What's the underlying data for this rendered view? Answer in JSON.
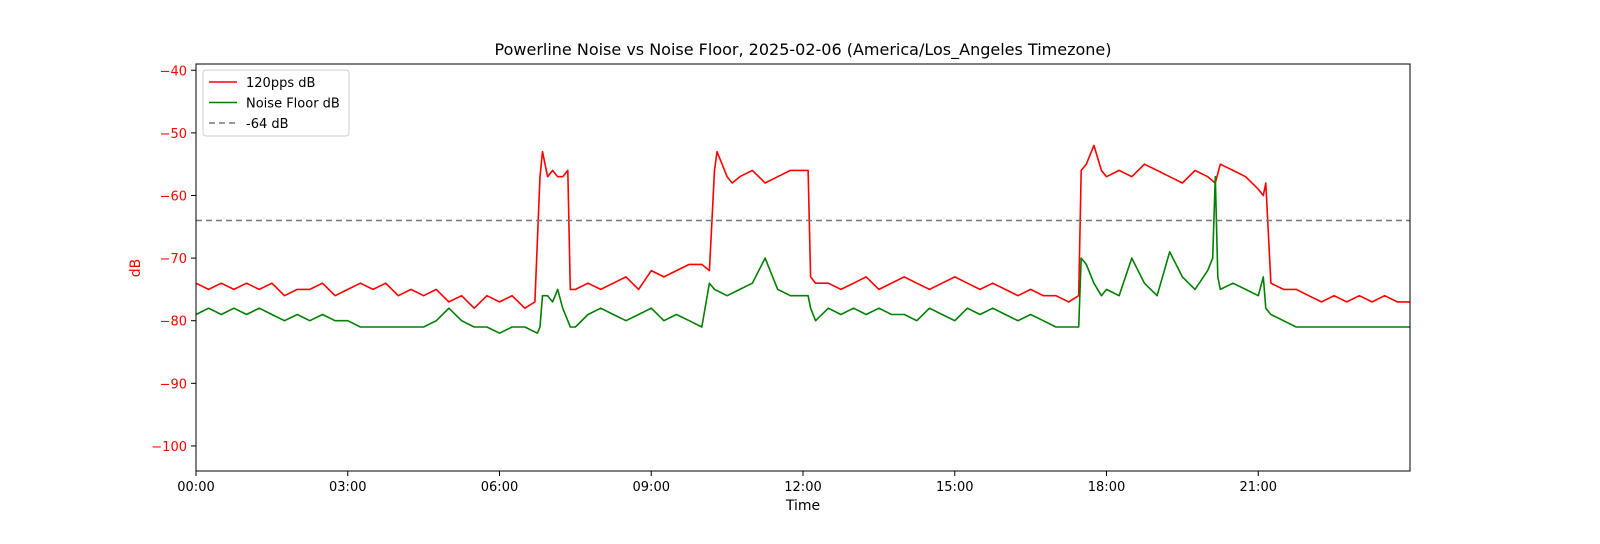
{
  "chart_data": {
    "type": "line",
    "title": "Powerline Noise vs Noise Floor, 2025-02-06 (America/Los_Angeles Timezone)",
    "xlabel": "Time",
    "ylabel": "dB",
    "x_unit": "hours",
    "xlim": [
      0,
      24
    ],
    "ylim": [
      -104,
      -39
    ],
    "x_ticks": [
      0,
      3,
      6,
      9,
      12,
      15,
      18,
      21
    ],
    "x_tick_labels": [
      "00:00",
      "03:00",
      "06:00",
      "09:00",
      "12:00",
      "15:00",
      "18:00",
      "21:00"
    ],
    "y_ticks": [
      -40,
      -50,
      -60,
      -70,
      -80,
      -90,
      -100
    ],
    "y_tick_labels": [
      "−40",
      "−50",
      "−60",
      "−70",
      "−80",
      "−90",
      "−100"
    ],
    "grid": false,
    "legend_position": "top-left",
    "series": [
      {
        "name": "120pps dB",
        "color": "#ff0000",
        "style": "solid",
        "x": [
          0,
          0.25,
          0.5,
          0.75,
          1.0,
          1.25,
          1.5,
          1.75,
          2.0,
          2.25,
          2.5,
          2.75,
          3.0,
          3.25,
          3.5,
          3.75,
          4.0,
          4.25,
          4.5,
          4.75,
          5.0,
          5.25,
          5.5,
          5.75,
          6.0,
          6.25,
          6.5,
          6.7,
          6.8,
          6.85,
          6.95,
          7.05,
          7.15,
          7.25,
          7.35,
          7.4,
          7.5,
          7.75,
          8.0,
          8.25,
          8.5,
          8.75,
          9.0,
          9.25,
          9.5,
          9.75,
          10.0,
          10.15,
          10.25,
          10.3,
          10.4,
          10.5,
          10.6,
          10.75,
          11.0,
          11.25,
          11.5,
          11.75,
          12.0,
          12.1,
          12.15,
          12.25,
          12.5,
          12.75,
          13.0,
          13.25,
          13.5,
          13.75,
          14.0,
          14.25,
          14.5,
          14.75,
          15.0,
          15.25,
          15.5,
          15.75,
          16.0,
          16.25,
          16.5,
          16.75,
          17.0,
          17.25,
          17.45,
          17.5,
          17.6,
          17.75,
          17.9,
          18.0,
          18.25,
          18.5,
          18.75,
          19.0,
          19.25,
          19.5,
          19.75,
          20.0,
          20.15,
          20.25,
          20.5,
          20.75,
          21.0,
          21.1,
          21.15,
          21.25,
          21.5,
          21.75,
          22.0,
          22.25,
          22.5,
          22.75,
          23.0,
          23.25,
          23.5,
          23.75,
          24.0
        ],
        "y": [
          -74,
          -75,
          -74,
          -75,
          -74,
          -75,
          -74,
          -76,
          -75,
          -75,
          -74,
          -76,
          -75,
          -74,
          -75,
          -74,
          -76,
          -75,
          -76,
          -75,
          -77,
          -76,
          -78,
          -76,
          -77,
          -76,
          -78,
          -77,
          -57,
          -53,
          -57,
          -56,
          -57,
          -57,
          -56,
          -75,
          -75,
          -74,
          -75,
          -74,
          -73,
          -75,
          -72,
          -73,
          -72,
          -71,
          -71,
          -72,
          -56,
          -53,
          -55,
          -57,
          -58,
          -57,
          -56,
          -58,
          -57,
          -56,
          -56,
          -56,
          -73,
          -74,
          -74,
          -75,
          -74,
          -73,
          -75,
          -74,
          -73,
          -74,
          -75,
          -74,
          -73,
          -74,
          -75,
          -74,
          -75,
          -76,
          -75,
          -76,
          -76,
          -77,
          -76,
          -56,
          -55,
          -52,
          -56,
          -57,
          -56,
          -57,
          -55,
          -56,
          -57,
          -58,
          -56,
          -57,
          -58,
          -55,
          -56,
          -57,
          -59,
          -60,
          -58,
          -74,
          -75,
          -75,
          -76,
          -77,
          -76,
          -77,
          -76,
          -77,
          -76,
          -77,
          -77
        ],
        "label": "120pps dB"
      },
      {
        "name": "Noise Floor dB",
        "color": "#008000",
        "style": "solid",
        "x": [
          0,
          0.25,
          0.5,
          0.75,
          1.0,
          1.25,
          1.5,
          1.75,
          2.0,
          2.25,
          2.5,
          2.75,
          3.0,
          3.25,
          3.5,
          3.75,
          4.0,
          4.25,
          4.5,
          4.75,
          5.0,
          5.25,
          5.5,
          5.75,
          6.0,
          6.25,
          6.5,
          6.75,
          6.8,
          6.85,
          6.95,
          7.05,
          7.15,
          7.25,
          7.35,
          7.4,
          7.5,
          7.75,
          8.0,
          8.25,
          8.5,
          8.75,
          9.0,
          9.25,
          9.5,
          9.75,
          10.0,
          10.15,
          10.25,
          10.5,
          10.75,
          11.0,
          11.25,
          11.5,
          11.75,
          12.0,
          12.1,
          12.15,
          12.25,
          12.5,
          12.75,
          13.0,
          13.25,
          13.5,
          13.75,
          14.0,
          14.25,
          14.5,
          14.75,
          15.0,
          15.25,
          15.5,
          15.75,
          16.0,
          16.25,
          16.5,
          16.75,
          17.0,
          17.25,
          17.45,
          17.5,
          17.6,
          17.75,
          17.9,
          18.0,
          18.25,
          18.5,
          18.75,
          19.0,
          19.25,
          19.5,
          19.75,
          20.0,
          20.1,
          20.15,
          20.2,
          20.25,
          20.5,
          20.75,
          21.0,
          21.1,
          21.15,
          21.25,
          21.5,
          21.75,
          22.0,
          22.25,
          22.5,
          22.75,
          23.0,
          23.25,
          23.5,
          23.75,
          24.0
        ],
        "y": [
          -79,
          -78,
          -79,
          -78,
          -79,
          -78,
          -79,
          -80,
          -79,
          -80,
          -79,
          -80,
          -80,
          -81,
          -81,
          -81,
          -81,
          -81,
          -81,
          -80,
          -78,
          -80,
          -81,
          -81,
          -82,
          -81,
          -81,
          -82,
          -81,
          -76,
          -76,
          -77,
          -75,
          -78,
          -80,
          -81,
          -81,
          -79,
          -78,
          -79,
          -80,
          -79,
          -78,
          -80,
          -79,
          -80,
          -81,
          -74,
          -75,
          -76,
          -75,
          -74,
          -70,
          -75,
          -76,
          -76,
          -76,
          -78,
          -80,
          -78,
          -79,
          -78,
          -79,
          -78,
          -79,
          -79,
          -80,
          -78,
          -79,
          -80,
          -78,
          -79,
          -78,
          -79,
          -80,
          -79,
          -80,
          -81,
          -81,
          -81,
          -70,
          -71,
          -74,
          -76,
          -75,
          -76,
          -70,
          -74,
          -76,
          -69,
          -73,
          -75,
          -72,
          -70,
          -57,
          -73,
          -75,
          -74,
          -75,
          -76,
          -73,
          -78,
          -79,
          -80,
          -81,
          -81,
          -81,
          -81,
          -81,
          -81,
          -81,
          -81,
          -81,
          -81
        ],
        "label": "Noise Floor dB"
      },
      {
        "name": "-64 dB",
        "color": "#777777",
        "style": "dashed",
        "x": [
          0,
          24
        ],
        "y": [
          -64,
          -64
        ],
        "label": "-64 dB"
      }
    ]
  }
}
